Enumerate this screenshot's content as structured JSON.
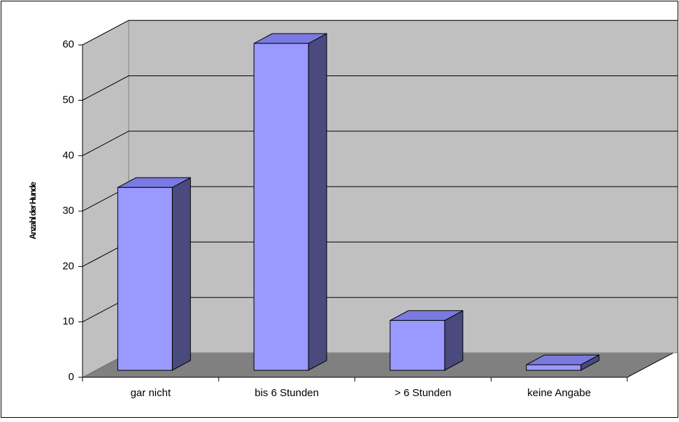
{
  "chart_data": {
    "type": "bar",
    "style": "3d-column",
    "categories": [
      "gar nicht",
      "bis 6 Stunden",
      "> 6 Stunden",
      "keine Angabe"
    ],
    "values": [
      33,
      59,
      9,
      1
    ],
    "title": "",
    "xlabel": "",
    "ylabel": "Anzahl der Hunde",
    "ylim": [
      0,
      60
    ],
    "yticks": [
      0,
      10,
      20,
      30,
      40,
      50,
      60
    ],
    "grid": true,
    "legend": "none"
  },
  "colors": {
    "bar_front": "#9999ff",
    "bar_top": "#7a7ae0",
    "bar_side": "#4a4a7e",
    "back_wall": "#c0c0c0",
    "side_wall": "#c0c0c0",
    "floor": "#808080",
    "gridline": "#000000",
    "border": "#000000"
  }
}
